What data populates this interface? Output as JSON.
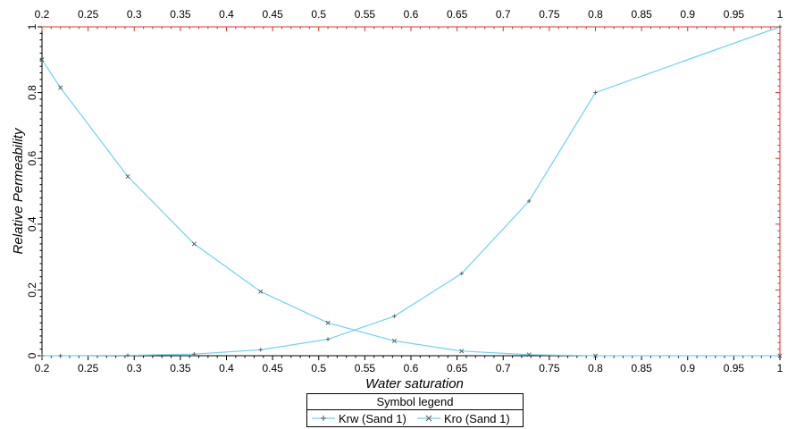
{
  "colors": {
    "series": "#6fd3ef",
    "axis_red": "#d9302b",
    "axis": "#000000"
  },
  "chart_data": {
    "type": "line",
    "title": "",
    "xlabel": "Water saturation",
    "ylabel": "Relative Permeability",
    "xlim": [
      0.2,
      1
    ],
    "ylim": [
      0,
      1
    ],
    "xticks": [
      "0.2",
      "0.25",
      "0.3",
      "0.35",
      "0.4",
      "0.45",
      "0.5",
      "0.55",
      "0.6",
      "0.65",
      "0.7",
      "0.75",
      "0.8",
      "0.85",
      "0.9",
      "0.95",
      "1"
    ],
    "yticks": [
      "0",
      "0.2",
      "0.4",
      "0.6",
      "0.8",
      "1"
    ],
    "grid": false,
    "legend_position": "bottom-center",
    "series": [
      {
        "name": "Krw (Sand 1)",
        "marker": "cross",
        "x": [
          0.2,
          0.22,
          0.293,
          0.365,
          0.437,
          0.51,
          0.582,
          0.655,
          0.728,
          0.8,
          1.0
        ],
        "y": [
          0.0,
          0.0,
          0.001,
          0.005,
          0.018,
          0.05,
          0.12,
          0.25,
          0.47,
          0.8,
          1.0
        ]
      },
      {
        "name": "Kro (Sand 1)",
        "marker": "x",
        "x": [
          0.2,
          0.22,
          0.293,
          0.365,
          0.437,
          0.51,
          0.582,
          0.655,
          0.728,
          0.8,
          1.0
        ],
        "y": [
          0.9,
          0.815,
          0.545,
          0.34,
          0.195,
          0.1,
          0.045,
          0.014,
          0.003,
          0.0,
          0.0
        ]
      }
    ]
  },
  "legend": {
    "title": "Symbol legend",
    "items": [
      "Krw (Sand 1)",
      "Kro (Sand 1)"
    ]
  }
}
